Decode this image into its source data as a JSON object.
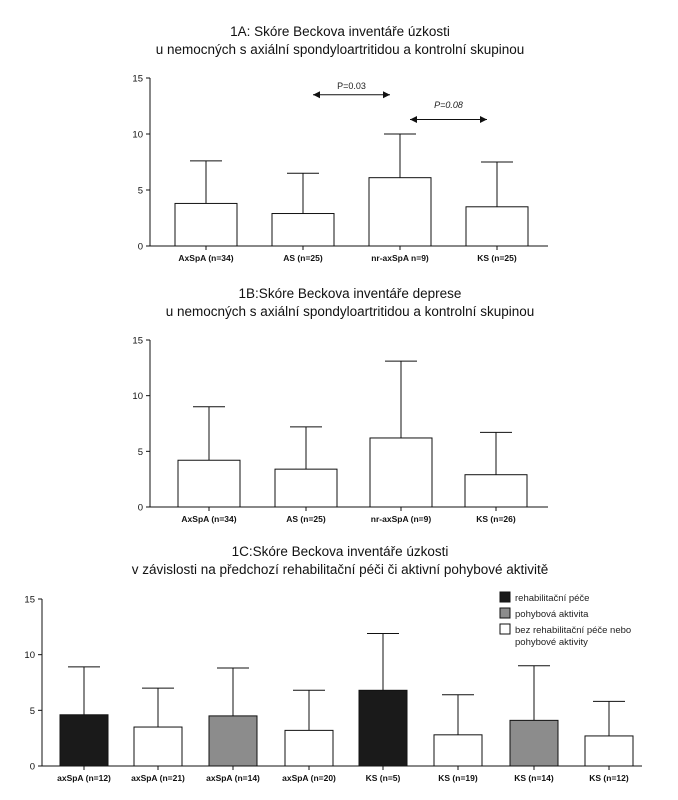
{
  "chart_data": [
    {
      "id": "1A",
      "type": "bar",
      "title_line1": "1A: Skóre Beckova inventáře úzkosti",
      "title_line2": "u nemocných s axiální spondyloartritidou a kontrolní skupinou",
      "categories": [
        "AxSpA (n=34)",
        "AS (n=25)",
        "nr-axSpA n=9)",
        "KS (n=25)"
      ],
      "values": [
        3.8,
        2.9,
        6.1,
        3.5
      ],
      "error_upper": [
        7.6,
        6.5,
        10.0,
        7.5
      ],
      "bar_colors": [
        "#ffffff",
        "#ffffff",
        "#ffffff",
        "#ffffff"
      ],
      "ylim": [
        0,
        15
      ],
      "yticks": [
        0,
        5,
        10,
        15
      ],
      "annotations": [
        {
          "text": "P=0.03",
          "from": 1,
          "to": 2,
          "y": 13.5,
          "text_y": 14.0
        },
        {
          "text": "P=0.08",
          "from": 2,
          "to": 3,
          "y": 11.3,
          "text_y": 12.3
        }
      ]
    },
    {
      "id": "1B",
      "type": "bar",
      "title_line1": "1B:Skóre Beckova inventáře deprese",
      "title_line2": "u nemocných s axiální spondyloartritidou a kontrolní skupinou",
      "categories": [
        "AxSpA (n=34)",
        "AS (n=25)",
        "nr-axSpA (n=9)",
        "KS (n=26)"
      ],
      "values": [
        4.2,
        3.4,
        6.2,
        2.9
      ],
      "error_upper": [
        9.0,
        7.2,
        13.1,
        6.7
      ],
      "bar_colors": [
        "#ffffff",
        "#ffffff",
        "#ffffff",
        "#ffffff"
      ],
      "ylim": [
        0,
        15
      ],
      "yticks": [
        0,
        5,
        10,
        15
      ],
      "annotations": []
    },
    {
      "id": "1C",
      "type": "bar",
      "title_line1": "1C:Skóre Beckova inventáře úzkosti",
      "title_line2": "v závislosti na předchozí rehabilitační péči či aktivní pohybové aktivitě",
      "categories": [
        "axSpA (n=12)",
        "axSpA (n=21)",
        "axSpA (n=14)",
        "axSpA (n=20)",
        "KS (n=5)",
        "KS (n=19)",
        "KS (n=14)",
        "KS (n=12)"
      ],
      "values": [
        4.6,
        3.5,
        4.5,
        3.2,
        6.8,
        2.8,
        4.1,
        2.7
      ],
      "error_upper": [
        8.9,
        7.0,
        8.8,
        6.8,
        11.9,
        6.4,
        9.0,
        5.8
      ],
      "bar_colors": [
        "#1a1a1a",
        "#ffffff",
        "#8c8c8c",
        "#ffffff",
        "#1a1a1a",
        "#ffffff",
        "#8c8c8c",
        "#ffffff"
      ],
      "ylim": [
        0,
        15
      ],
      "yticks": [
        0,
        5,
        10,
        15
      ],
      "annotations": [],
      "legend": [
        {
          "color": "#1a1a1a",
          "lines": [
            "rehabilitační péče"
          ]
        },
        {
          "color": "#8c8c8c",
          "lines": [
            "pohybová aktivita"
          ]
        },
        {
          "color": "#ffffff",
          "lines": [
            "bez rehabilitační péče nebo",
            "pohybové aktivity"
          ]
        }
      ]
    }
  ]
}
